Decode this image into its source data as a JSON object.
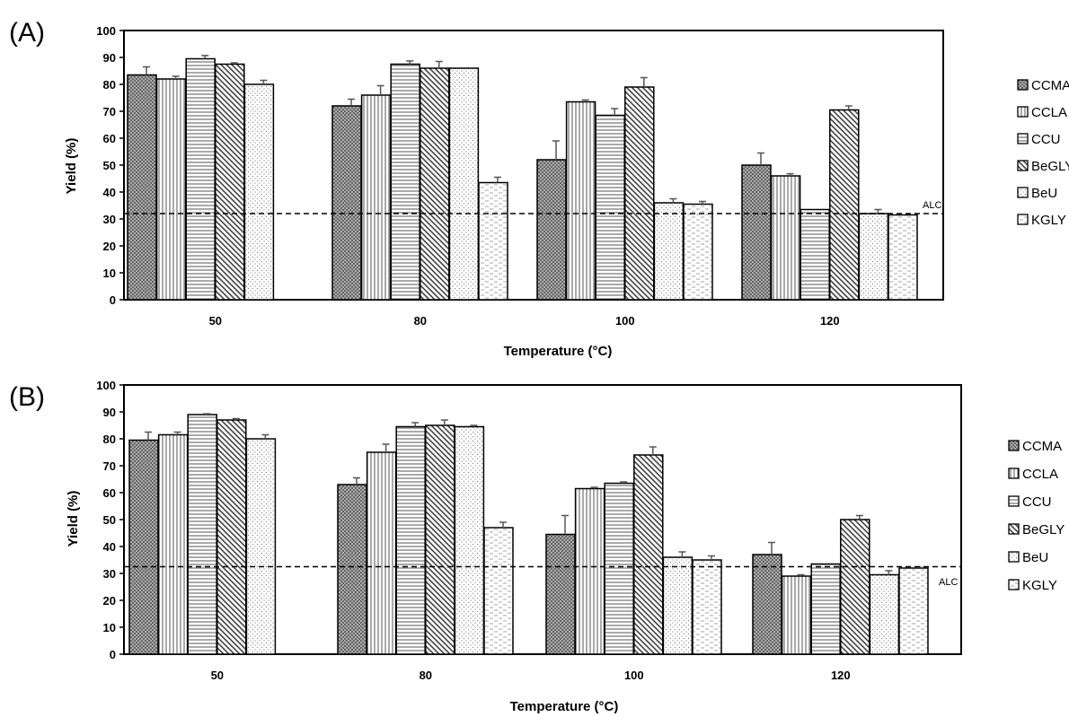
{
  "chart_data": [
    {
      "panel": "(A)",
      "type": "bar",
      "categories": [
        "50",
        "80",
        "100",
        "120"
      ],
      "xlabel": "Temperature (°C)",
      "ylabel": "Yield (%)",
      "ylim": [
        0,
        100
      ],
      "yticks": [
        "0",
        "10",
        "20",
        "30",
        "40",
        "50",
        "60",
        "70",
        "80",
        "90",
        "100"
      ],
      "grid": false,
      "legend_position": "right",
      "reference_line": {
        "label": "ALC",
        "value": 32,
        "style": "dashed"
      },
      "series": [
        {
          "name": "CCMA",
          "pattern": "crosshatch",
          "values": [
            83.5,
            72,
            52,
            50
          ],
          "errors": [
            3,
            2.5,
            7,
            4.5
          ]
        },
        {
          "name": "CCLA",
          "pattern": "vertical",
          "values": [
            82,
            76,
            73.5,
            46
          ],
          "errors": [
            1,
            3.5,
            0.7,
            0.8
          ]
        },
        {
          "name": "CCU",
          "pattern": "horizontal",
          "values": [
            89.5,
            87.5,
            68.5,
            33.5
          ],
          "errors": [
            1.2,
            1.2,
            2.5,
            0
          ]
        },
        {
          "name": "BeGLY",
          "pattern": "diagonal",
          "values": [
            87.5,
            86,
            79,
            70.5
          ],
          "errors": [
            0.5,
            2.5,
            3.5,
            1.5
          ]
        },
        {
          "name": "BeU",
          "pattern": "dots",
          "values": [
            80,
            86,
            36,
            32
          ],
          "errors": [
            1.5,
            0,
            1.5,
            1.5
          ]
        },
        {
          "name": "KGLY",
          "pattern": "dashes",
          "values": [
            null,
            43.5,
            35.5,
            31.5
          ],
          "errors": [
            0,
            2,
            1,
            0
          ]
        }
      ]
    },
    {
      "panel": "(B)",
      "type": "bar",
      "categories": [
        "50",
        "80",
        "100",
        "120"
      ],
      "xlabel": "Temperature (°C)",
      "ylabel": "Yield (%)",
      "ylim": [
        0,
        100
      ],
      "yticks": [
        "0",
        "10",
        "20",
        "30",
        "40",
        "50",
        "60",
        "70",
        "80",
        "90",
        "100"
      ],
      "grid": false,
      "legend_position": "right",
      "reference_line": {
        "label": "ALC",
        "value": 32.5,
        "style": "dashed"
      },
      "series": [
        {
          "name": "CCMA",
          "pattern": "crosshatch",
          "values": [
            79.5,
            63,
            44.5,
            37
          ],
          "errors": [
            3,
            2.5,
            7,
            4.5
          ]
        },
        {
          "name": "CCLA",
          "pattern": "vertical",
          "values": [
            81.5,
            75,
            61.5,
            29
          ],
          "errors": [
            1,
            3,
            0.5,
            0.5
          ]
        },
        {
          "name": "CCU",
          "pattern": "horizontal",
          "values": [
            89,
            84.5,
            63.5,
            33.5
          ],
          "errors": [
            0.3,
            1.5,
            0.5,
            0
          ]
        },
        {
          "name": "BeGLY",
          "pattern": "diagonal",
          "values": [
            87,
            85,
            74,
            50
          ],
          "errors": [
            0.5,
            2,
            3,
            1.5
          ]
        },
        {
          "name": "BeU",
          "pattern": "dots",
          "values": [
            80,
            84.5,
            36,
            29.5
          ],
          "errors": [
            1.5,
            0.5,
            2,
            1.5
          ]
        },
        {
          "name": "KGLY",
          "pattern": "dashes",
          "values": [
            null,
            47,
            35,
            32
          ],
          "errors": [
            0,
            2,
            1.5,
            0.3
          ]
        }
      ]
    }
  ]
}
